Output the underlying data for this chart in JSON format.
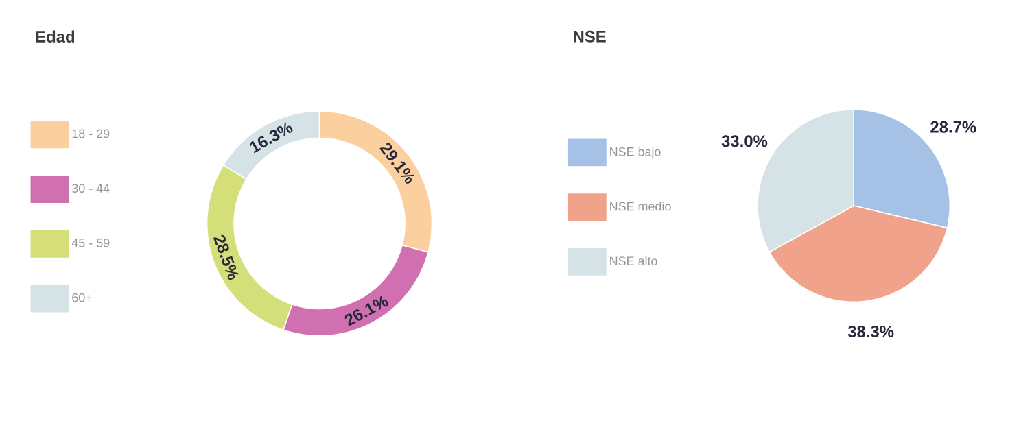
{
  "chart_data": [
    {
      "type": "donut",
      "title": "Edad",
      "categories": [
        "18 - 29",
        "30 - 44",
        "45 - 59",
        "60+"
      ],
      "values": [
        29.1,
        26.1,
        28.5,
        16.3
      ],
      "value_labels": [
        "29.1%",
        "26.1%",
        "28.5%",
        "16.3%"
      ],
      "colors": [
        "#fcd09e",
        "#d070b0",
        "#d4df7a",
        "#d5e3e6"
      ],
      "legend": "left"
    },
    {
      "type": "pie",
      "title": "NSE",
      "categories": [
        "NSE bajo",
        "NSE medio",
        "NSE alto"
      ],
      "values": [
        28.7,
        38.3,
        33.0
      ],
      "value_labels": [
        "28.7%",
        "38.3%",
        "33.0%"
      ],
      "colors": [
        "#a6c1e6",
        "#f0a38a",
        "#d5e3e6"
      ],
      "legend": "left"
    }
  ]
}
